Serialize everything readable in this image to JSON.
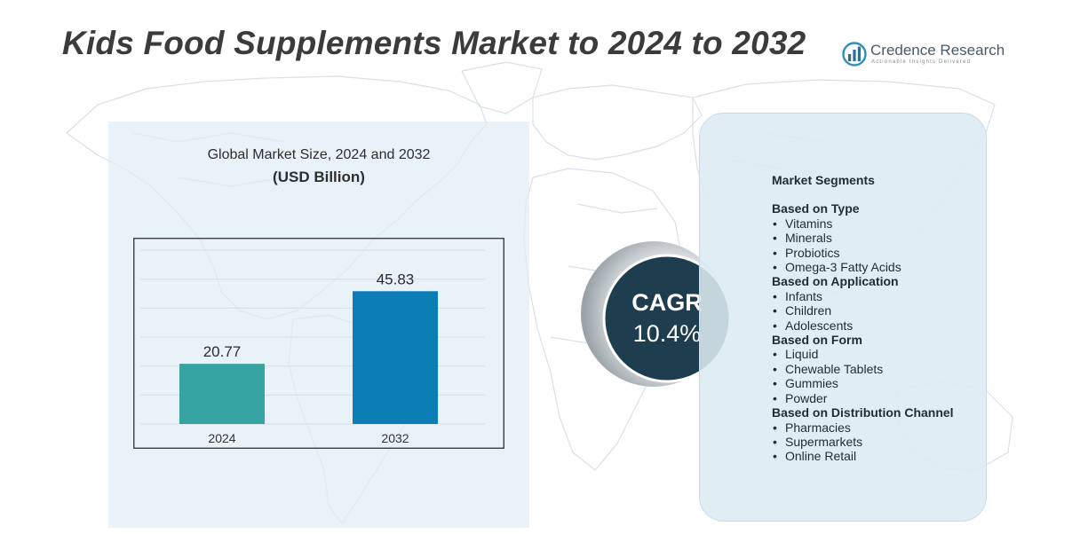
{
  "header": {
    "title": "Kids Food Supplements Market to 2024 to 2032"
  },
  "logo": {
    "name": "Credence Research",
    "tagline": "Actionable Insights Delivered",
    "icon": "bar-chart-globe-icon"
  },
  "colors": {
    "bar_2024": "#35a3a1",
    "bar_2032": "#0a7eb5",
    "cagr_circle": "#1e3d4f",
    "title_text": "#3b3b3b"
  },
  "chart_data": {
    "type": "bar",
    "title": "Global Market Size, 2024 and 2032",
    "subtitle": "(USD Billion)",
    "categories": [
      "2024",
      "2032"
    ],
    "values": [
      20.77,
      45.83
    ],
    "data_labels": [
      "20.77",
      "45.83"
    ],
    "ylim": [
      0,
      60
    ],
    "grid": true,
    "legend": "none"
  },
  "cagr": {
    "label": "CAGR",
    "value": "10.4%"
  },
  "segments": {
    "title": "Market Segments",
    "groups": [
      {
        "title": "Based on Type",
        "items": [
          "Vitamins",
          "Minerals",
          "Probiotics",
          "Omega-3 Fatty Acids"
        ]
      },
      {
        "title": "Based on Application",
        "items": [
          "Infants",
          "Children",
          "Adolescents"
        ]
      },
      {
        "title": "Based on Form",
        "items": [
          "Liquid",
          "Chewable Tablets",
          "Gummies",
          "Powder"
        ]
      },
      {
        "title": "Based on Distribution Channel",
        "items": [
          "Pharmacies",
          "Supermarkets",
          "Online Retail"
        ]
      }
    ]
  }
}
